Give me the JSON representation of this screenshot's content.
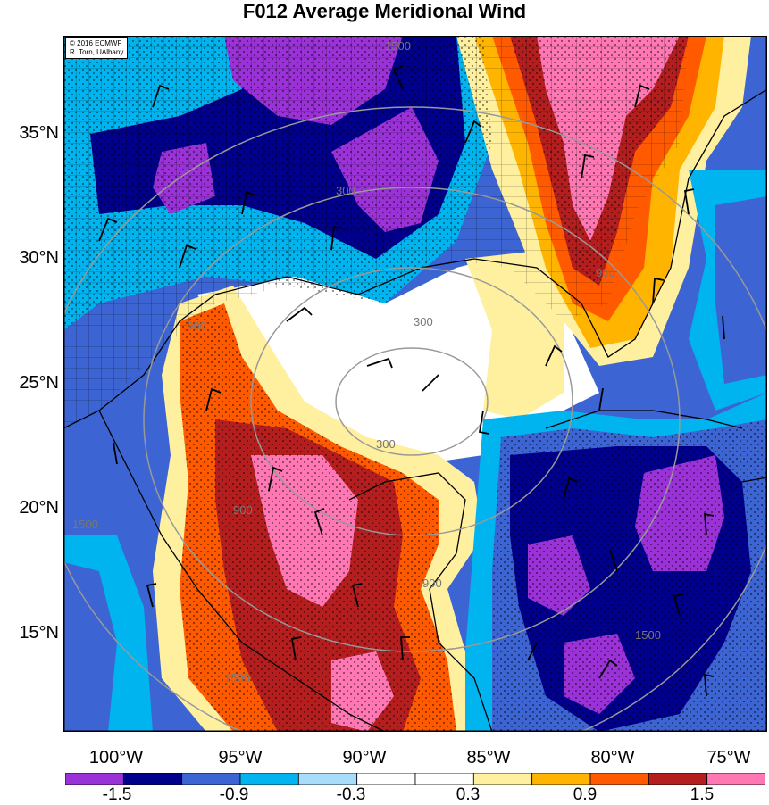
{
  "title": "F012 Average Meridional Wind",
  "credit": {
    "line1": "© 2016 ECMWF",
    "line2": "R. Torn, UAlbany"
  },
  "lat_labels": [
    "35°N",
    "30°N",
    "25°N",
    "20°N",
    "15°N"
  ],
  "lon_labels": [
    "100°W",
    "95°W",
    "90°W",
    "85°W",
    "80°W",
    "75°W"
  ],
  "contour_labels": [
    "300",
    "300",
    "300",
    "900",
    "900",
    "900",
    "900",
    "1500",
    "1500",
    "1500",
    "1500"
  ],
  "colorbar": {
    "tick_labels": [
      "-1.5",
      "-0.9",
      "-0.3",
      "0.3",
      "0.9",
      "1.5"
    ],
    "colors": [
      "#9a32d8",
      "#00008c",
      "#3c64d2",
      "#00b4f0",
      "#a8dcfa",
      "#ffffff",
      "#ffffff",
      "#fff0a0",
      "#ffb400",
      "#ff5a00",
      "#b41e1e",
      "#ff78b4"
    ]
  }
}
